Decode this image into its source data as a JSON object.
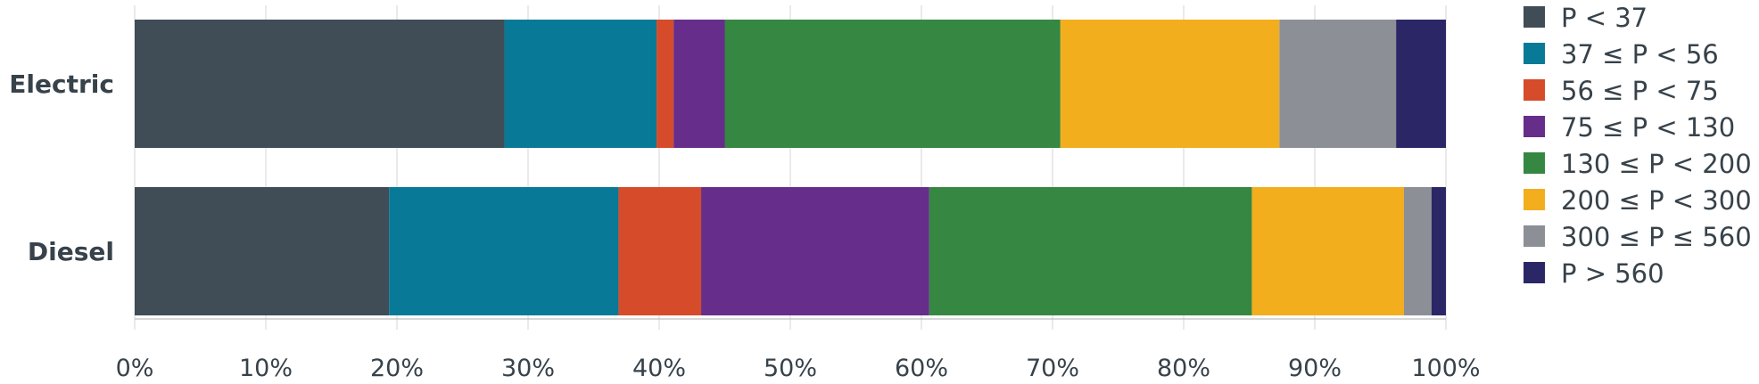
{
  "chart_data": {
    "type": "bar",
    "orientation": "horizontal",
    "stacked": true,
    "normalized_percent": true,
    "categories": [
      "Electric",
      "Diesel"
    ],
    "series": [
      {
        "name": "P < 37",
        "color": "#404c56",
        "values": [
          28.2,
          19.4
        ]
      },
      {
        "name": "37 ≤ P < 56",
        "color": "#087996",
        "values": [
          11.6,
          17.5
        ]
      },
      {
        "name": "56 ≤ P < 75",
        "color": "#d64b2a",
        "values": [
          1.3,
          6.3
        ]
      },
      {
        "name": "75 ≤ P < 130",
        "color": "#662d8a",
        "values": [
          3.9,
          17.4
        ]
      },
      {
        "name": "130 ≤ P < 200",
        "color": "#358742",
        "values": [
          25.6,
          24.6
        ]
      },
      {
        "name": "200 ≤ P < 300",
        "color": "#f3ae1e",
        "values": [
          16.7,
          11.6
        ]
      },
      {
        "name": "300 ≤ P ≤ 560",
        "color": "#8d8f96",
        "values": [
          8.9,
          2.1
        ]
      },
      {
        "name": "P > 560",
        "color": "#2b2766",
        "values": [
          3.8,
          1.1
        ]
      }
    ],
    "xlim": [
      0,
      100
    ],
    "x_ticks": [
      "0%",
      "10%",
      "20%",
      "30%",
      "40%",
      "50%",
      "60%",
      "70%",
      "80%",
      "90%",
      "100%"
    ],
    "grid": true,
    "legend_placement": "right",
    "title": "",
    "xlabel": "",
    "ylabel": ""
  }
}
